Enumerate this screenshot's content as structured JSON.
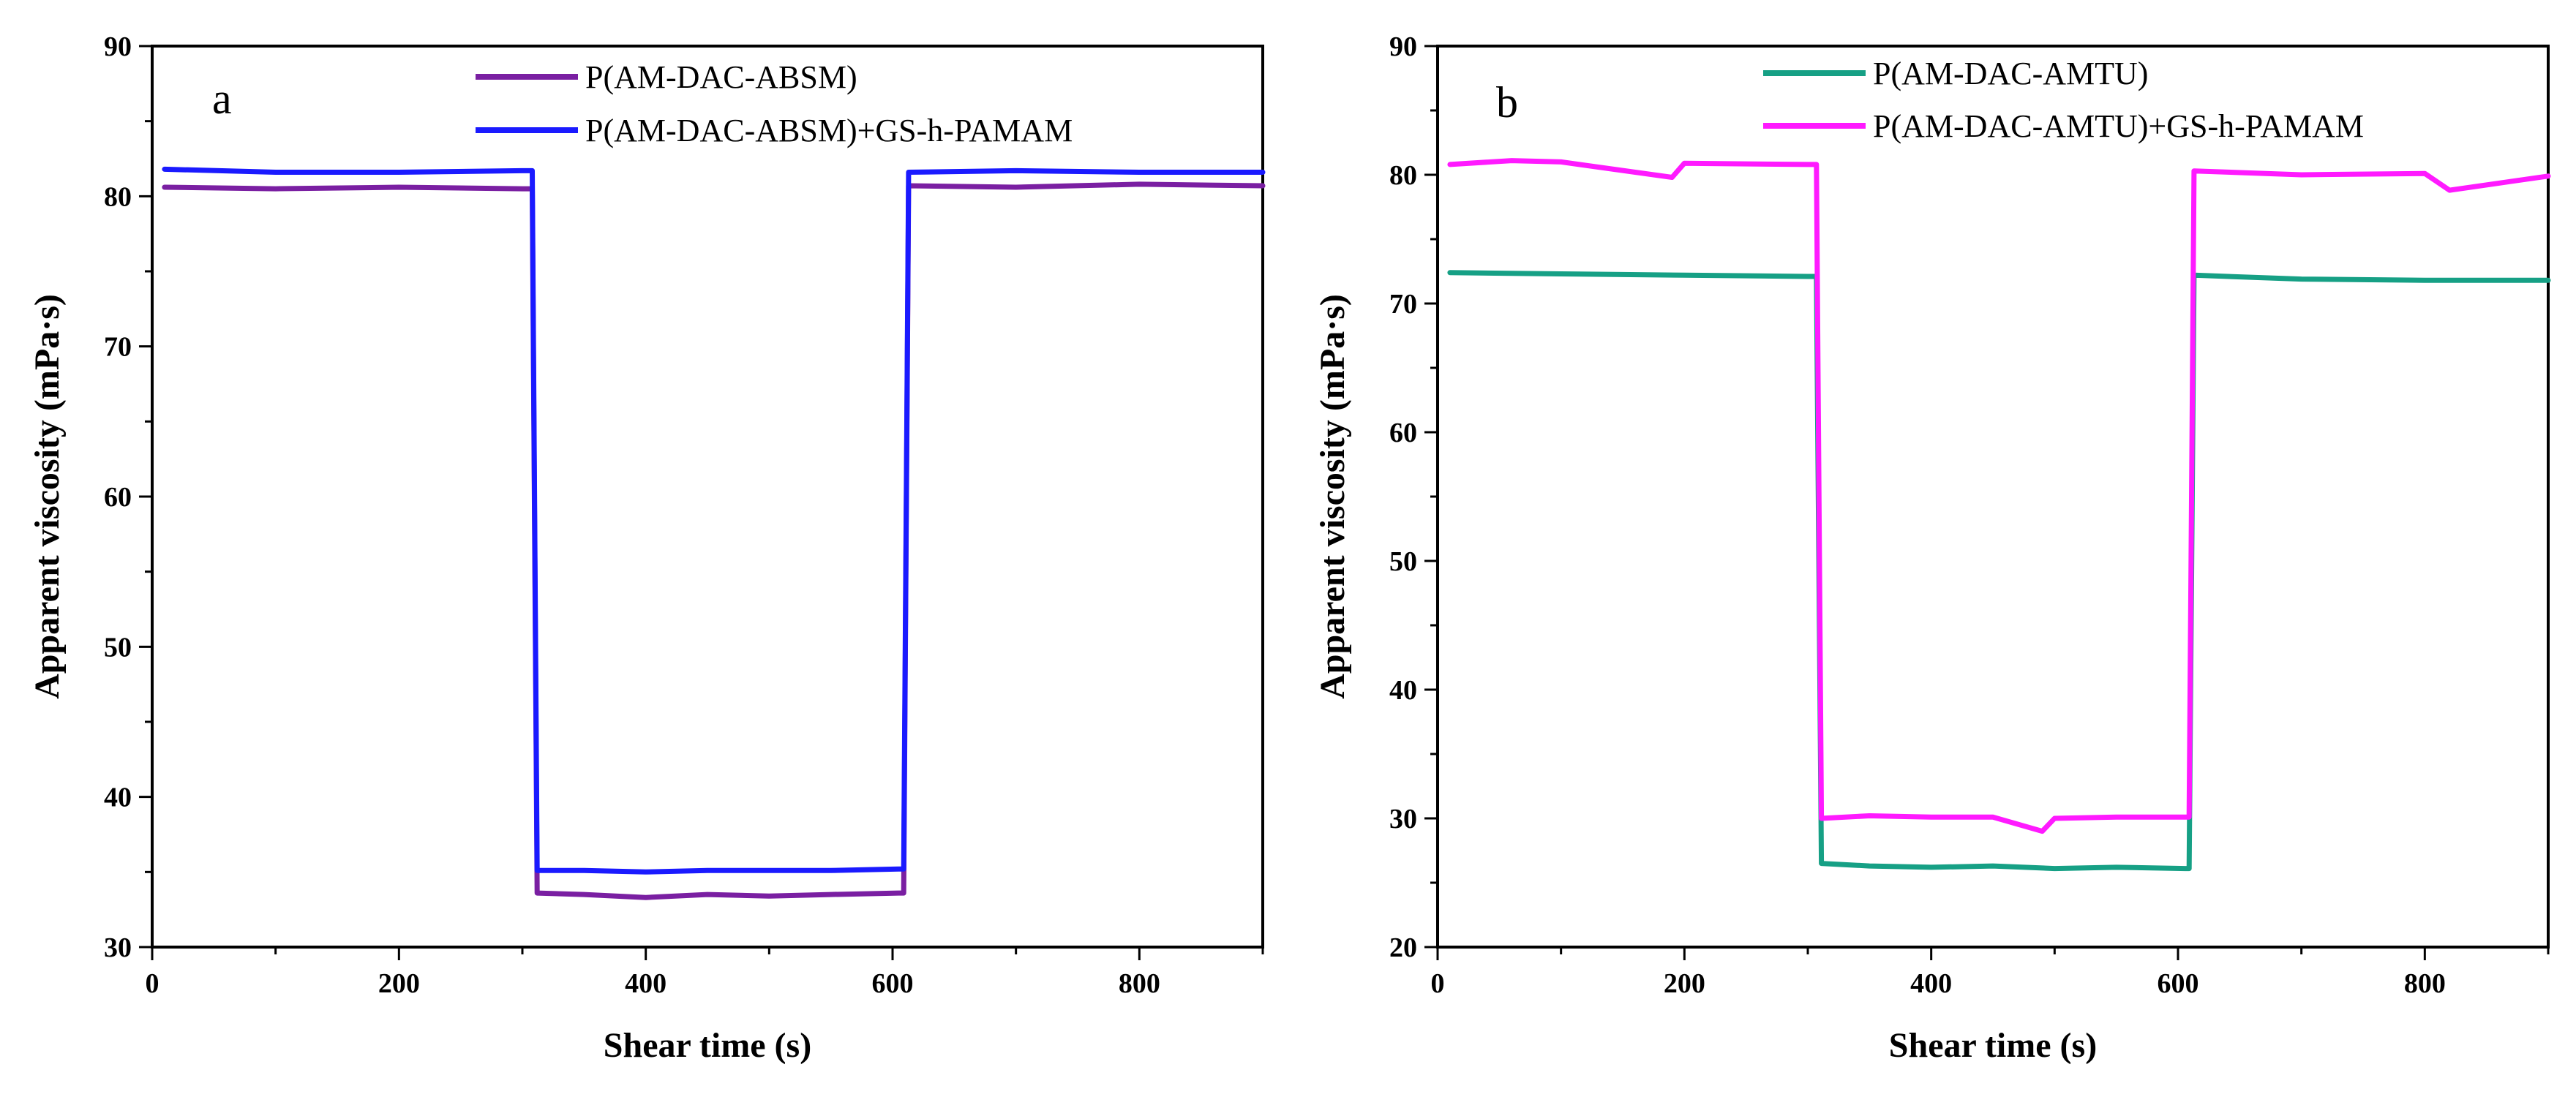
{
  "figure": {
    "panels": [
      "a",
      "b"
    ]
  },
  "chart_data": [
    {
      "type": "line",
      "panel_label": "a",
      "xlabel": "Shear time (s)",
      "ylabel": "Apparent viscosity (mPa·s)",
      "xlim": [
        0,
        900
      ],
      "ylim": [
        30,
        90
      ],
      "xticks": [
        0,
        200,
        400,
        600,
        800
      ],
      "yticks": [
        30,
        40,
        50,
        60,
        70,
        80,
        90
      ],
      "legend_position": "top-right",
      "series": [
        {
          "name": "P(AM-DAC-ABSM)",
          "color": "#7a1fa2",
          "x": [
            10,
            100,
            200,
            300,
            308,
            312,
            350,
            400,
            450,
            500,
            550,
            605,
            609,
            613,
            700,
            800,
            900
          ],
          "y": [
            80.6,
            80.5,
            80.6,
            80.5,
            80.5,
            33.6,
            33.5,
            33.3,
            33.5,
            33.4,
            33.5,
            33.6,
            33.6,
            80.7,
            80.6,
            80.8,
            80.7
          ]
        },
        {
          "name": "P(AM-DAC-ABSM)+GS-h-PAMAM",
          "color": "#1a1aff",
          "x": [
            10,
            100,
            200,
            300,
            308,
            312,
            350,
            400,
            450,
            500,
            550,
            605,
            609,
            613,
            700,
            800,
            900
          ],
          "y": [
            81.8,
            81.6,
            81.6,
            81.7,
            81.7,
            35.1,
            35.1,
            35.0,
            35.1,
            35.1,
            35.1,
            35.2,
            35.2,
            81.6,
            81.7,
            81.6,
            81.6
          ]
        }
      ]
    },
    {
      "type": "line",
      "panel_label": "b",
      "xlabel": "Shear time (s)",
      "ylabel": "Apparent viscosity (mPa·s)",
      "xlim": [
        0,
        900
      ],
      "ylim": [
        20,
        90
      ],
      "xticks": [
        0,
        200,
        400,
        600,
        800
      ],
      "yticks": [
        20,
        30,
        40,
        50,
        60,
        70,
        80,
        90
      ],
      "legend_position": "top-right",
      "series": [
        {
          "name": "P(AM-DAC-AMTU)",
          "color": "#16a085",
          "x": [
            10,
            100,
            200,
            300,
            307,
            311,
            350,
            400,
            450,
            500,
            550,
            606,
            609,
            613,
            700,
            800,
            900
          ],
          "y": [
            72.4,
            72.3,
            72.2,
            72.1,
            72.1,
            26.5,
            26.3,
            26.2,
            26.3,
            26.1,
            26.2,
            26.1,
            26.1,
            72.2,
            71.9,
            71.8,
            71.8
          ]
        },
        {
          "name": "P(AM-DAC-AMTU)+GS-h-PAMAM",
          "color": "#ff1aff",
          "x": [
            10,
            60,
            100,
            190,
            200,
            300,
            307,
            311,
            350,
            400,
            450,
            490,
            500,
            550,
            606,
            609,
            613,
            700,
            800,
            820,
            900
          ],
          "y": [
            80.8,
            81.1,
            81.0,
            79.8,
            80.9,
            80.8,
            80.8,
            30.0,
            30.2,
            30.1,
            30.1,
            29.0,
            30.0,
            30.1,
            30.1,
            30.1,
            80.3,
            80.0,
            80.1,
            78.8,
            79.9
          ]
        }
      ]
    }
  ]
}
